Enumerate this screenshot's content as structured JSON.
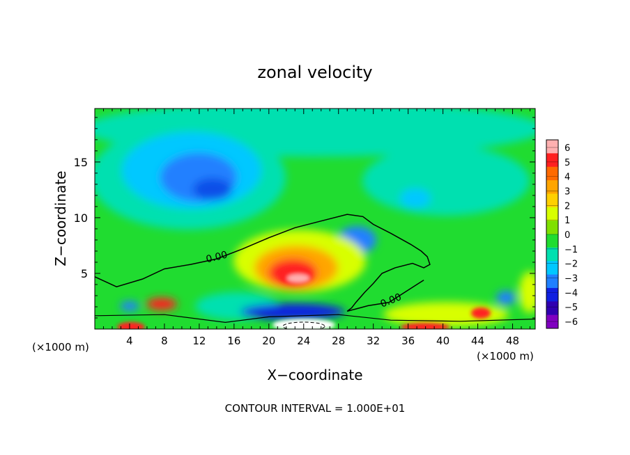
{
  "chart_data": {
    "type": "heatmap",
    "title": "zonal velocity",
    "xlabel": "X−coordinate",
    "ylabel": "Z−coordinate",
    "x_unit_left": "(×1000 m)",
    "x_unit_right": "(×1000 m)",
    "footer": "CONTOUR INTERVAL = 1.000E+01",
    "xlim": [
      0,
      50.6
    ],
    "ylim": [
      0,
      19.8
    ],
    "x_ticks": [
      4,
      8,
      12,
      16,
      20,
      24,
      28,
      32,
      36,
      40,
      44,
      48
    ],
    "y_ticks": [
      5,
      10,
      15
    ],
    "contour_labels": [
      {
        "text": "0.00",
        "x": 14,
        "y": 6.5
      },
      {
        "text": "0.00",
        "x": 34,
        "y": 2.6
      }
    ],
    "zero_contour_upper": [
      [
        0,
        4.7
      ],
      [
        2.5,
        3.8
      ],
      [
        5.5,
        4.5
      ],
      [
        8,
        5.4
      ],
      [
        11,
        5.8
      ],
      [
        14,
        6.3
      ],
      [
        17,
        7.2
      ],
      [
        20,
        8.2
      ],
      [
        23,
        9.1
      ],
      [
        26,
        9.7
      ],
      [
        29,
        10.3
      ],
      [
        30.8,
        10.1
      ],
      [
        32,
        9.4
      ],
      [
        34,
        8.6
      ],
      [
        36.3,
        7.6
      ],
      [
        37.5,
        7.0
      ],
      [
        38.2,
        6.5
      ],
      [
        38.5,
        5.8
      ],
      [
        37.8,
        5.5
      ],
      [
        36.5,
        5.9
      ],
      [
        34.5,
        5.5
      ],
      [
        33,
        5.0
      ],
      [
        32,
        4.1
      ],
      [
        31,
        3.3
      ],
      [
        30,
        2.4
      ],
      [
        29.5,
        1.9
      ],
      [
        29,
        1.6
      ],
      [
        31.4,
        2.1
      ],
      [
        33.8,
        2.4
      ],
      [
        35.8,
        3.4
      ],
      [
        37.2,
        4.1
      ],
      [
        37.8,
        4.4
      ]
    ],
    "colorbar": {
      "min": -6,
      "max": 6,
      "levels": [
        6,
        5,
        4,
        3,
        2,
        1,
        0,
        -1,
        -2,
        -3,
        -4,
        -5,
        -6
      ],
      "labels": [
        "6",
        "5",
        "4",
        "3",
        "2",
        "1",
        "0",
        "−1",
        "−2",
        "−3",
        "−4",
        "−5",
        "−6"
      ],
      "colors": [
        "#ffb0b0",
        "#ff2020",
        "#ff6a00",
        "#ffa500",
        "#ffd000",
        "#d8ff00",
        "#7fe000",
        "#20dc30",
        "#00e0b0",
        "#00c8ff",
        "#2080ff",
        "#1020e0",
        "#3000b0",
        "#8000c0"
      ]
    },
    "features": [
      {
        "name": "negative core upper-left",
        "x": 14,
        "y": 12.5,
        "value": -3.5
      },
      {
        "name": "negative patch",
        "x": 30,
        "y": 8,
        "value": -2.8
      },
      {
        "name": "negative patch right",
        "x": 36.5,
        "y": 12,
        "value": -2
      },
      {
        "name": "positive core",
        "x": 23,
        "y": 4.7,
        "value": 6
      },
      {
        "name": "positive patch",
        "x": 8,
        "y": 2.3,
        "value": 3
      },
      {
        "name": "positive low",
        "x": 43,
        "y": 1.2,
        "value": 3.5
      }
    ]
  }
}
